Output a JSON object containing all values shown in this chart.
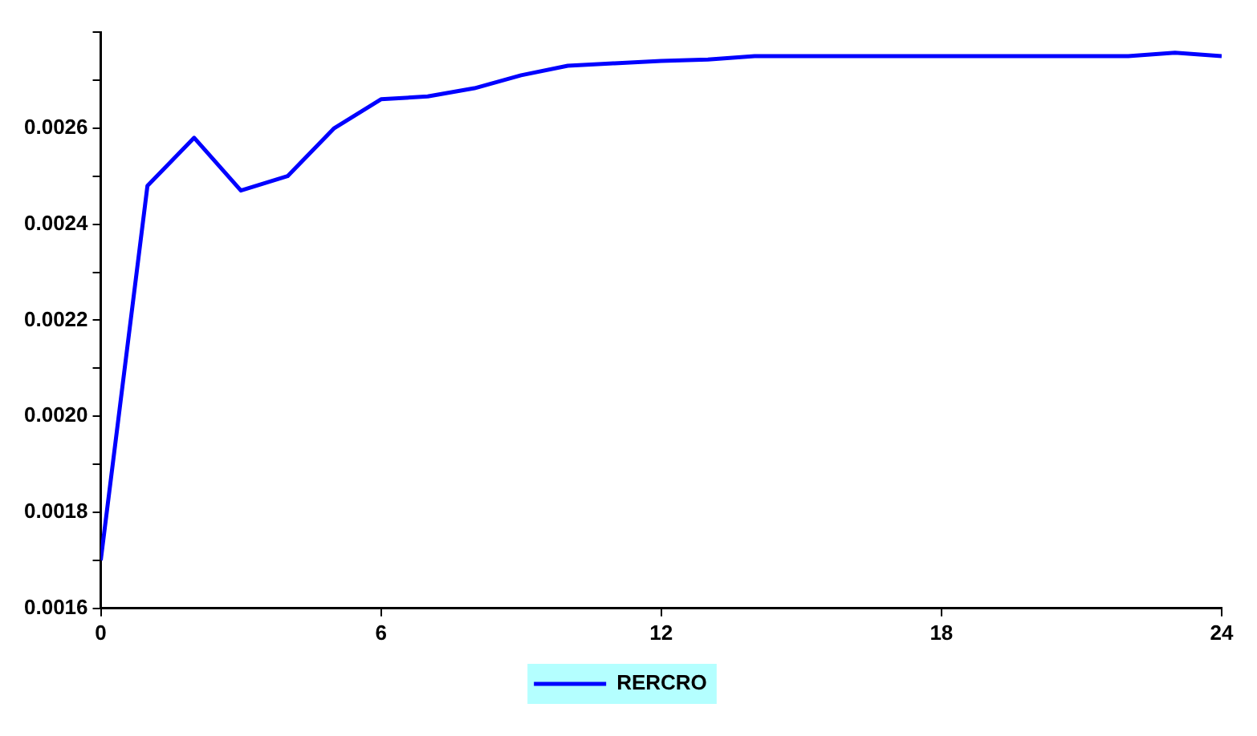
{
  "chart_data": {
    "type": "line",
    "x": [
      0,
      1,
      2,
      3,
      4,
      5,
      6,
      7,
      8,
      9,
      10,
      11,
      12,
      13,
      14,
      15,
      16,
      17,
      18,
      19,
      20,
      21,
      22,
      23,
      24
    ],
    "series": [
      {
        "name": "RERCRO",
        "color": "#0000ff",
        "values": [
          0.0017,
          0.00248,
          0.00258,
          0.00247,
          0.0025,
          0.0026,
          0.00266,
          0.002666,
          0.002683,
          0.00271,
          0.00273,
          0.002735,
          0.00274,
          0.002743,
          0.00275,
          0.00275,
          0.00275,
          0.00275,
          0.00275,
          0.00275,
          0.00275,
          0.00275,
          0.00275,
          0.002757,
          0.00275
        ]
      }
    ],
    "xlim": [
      0,
      24
    ],
    "xticks": [
      0,
      6,
      12,
      18,
      24
    ],
    "ylim": [
      0.0016,
      0.0028
    ],
    "yticks": [
      {
        "value": 0.0016,
        "label": "0.0016"
      },
      {
        "value": 0.0017,
        "label": null
      },
      {
        "value": 0.0018,
        "label": "0.0018"
      },
      {
        "value": 0.0019,
        "label": null
      },
      {
        "value": 0.002,
        "label": "0.0020"
      },
      {
        "value": 0.0021,
        "label": null
      },
      {
        "value": 0.0022,
        "label": "0.0022"
      },
      {
        "value": 0.0023,
        "label": null
      },
      {
        "value": 0.0024,
        "label": "0.0024"
      },
      {
        "value": 0.0025,
        "label": null
      },
      {
        "value": 0.0026,
        "label": "0.0026"
      },
      {
        "value": 0.0027,
        "label": null
      },
      {
        "value": 0.0028,
        "label": null
      }
    ],
    "grid": false,
    "legend": "bottom",
    "marker": "none",
    "line_style": "solid"
  }
}
